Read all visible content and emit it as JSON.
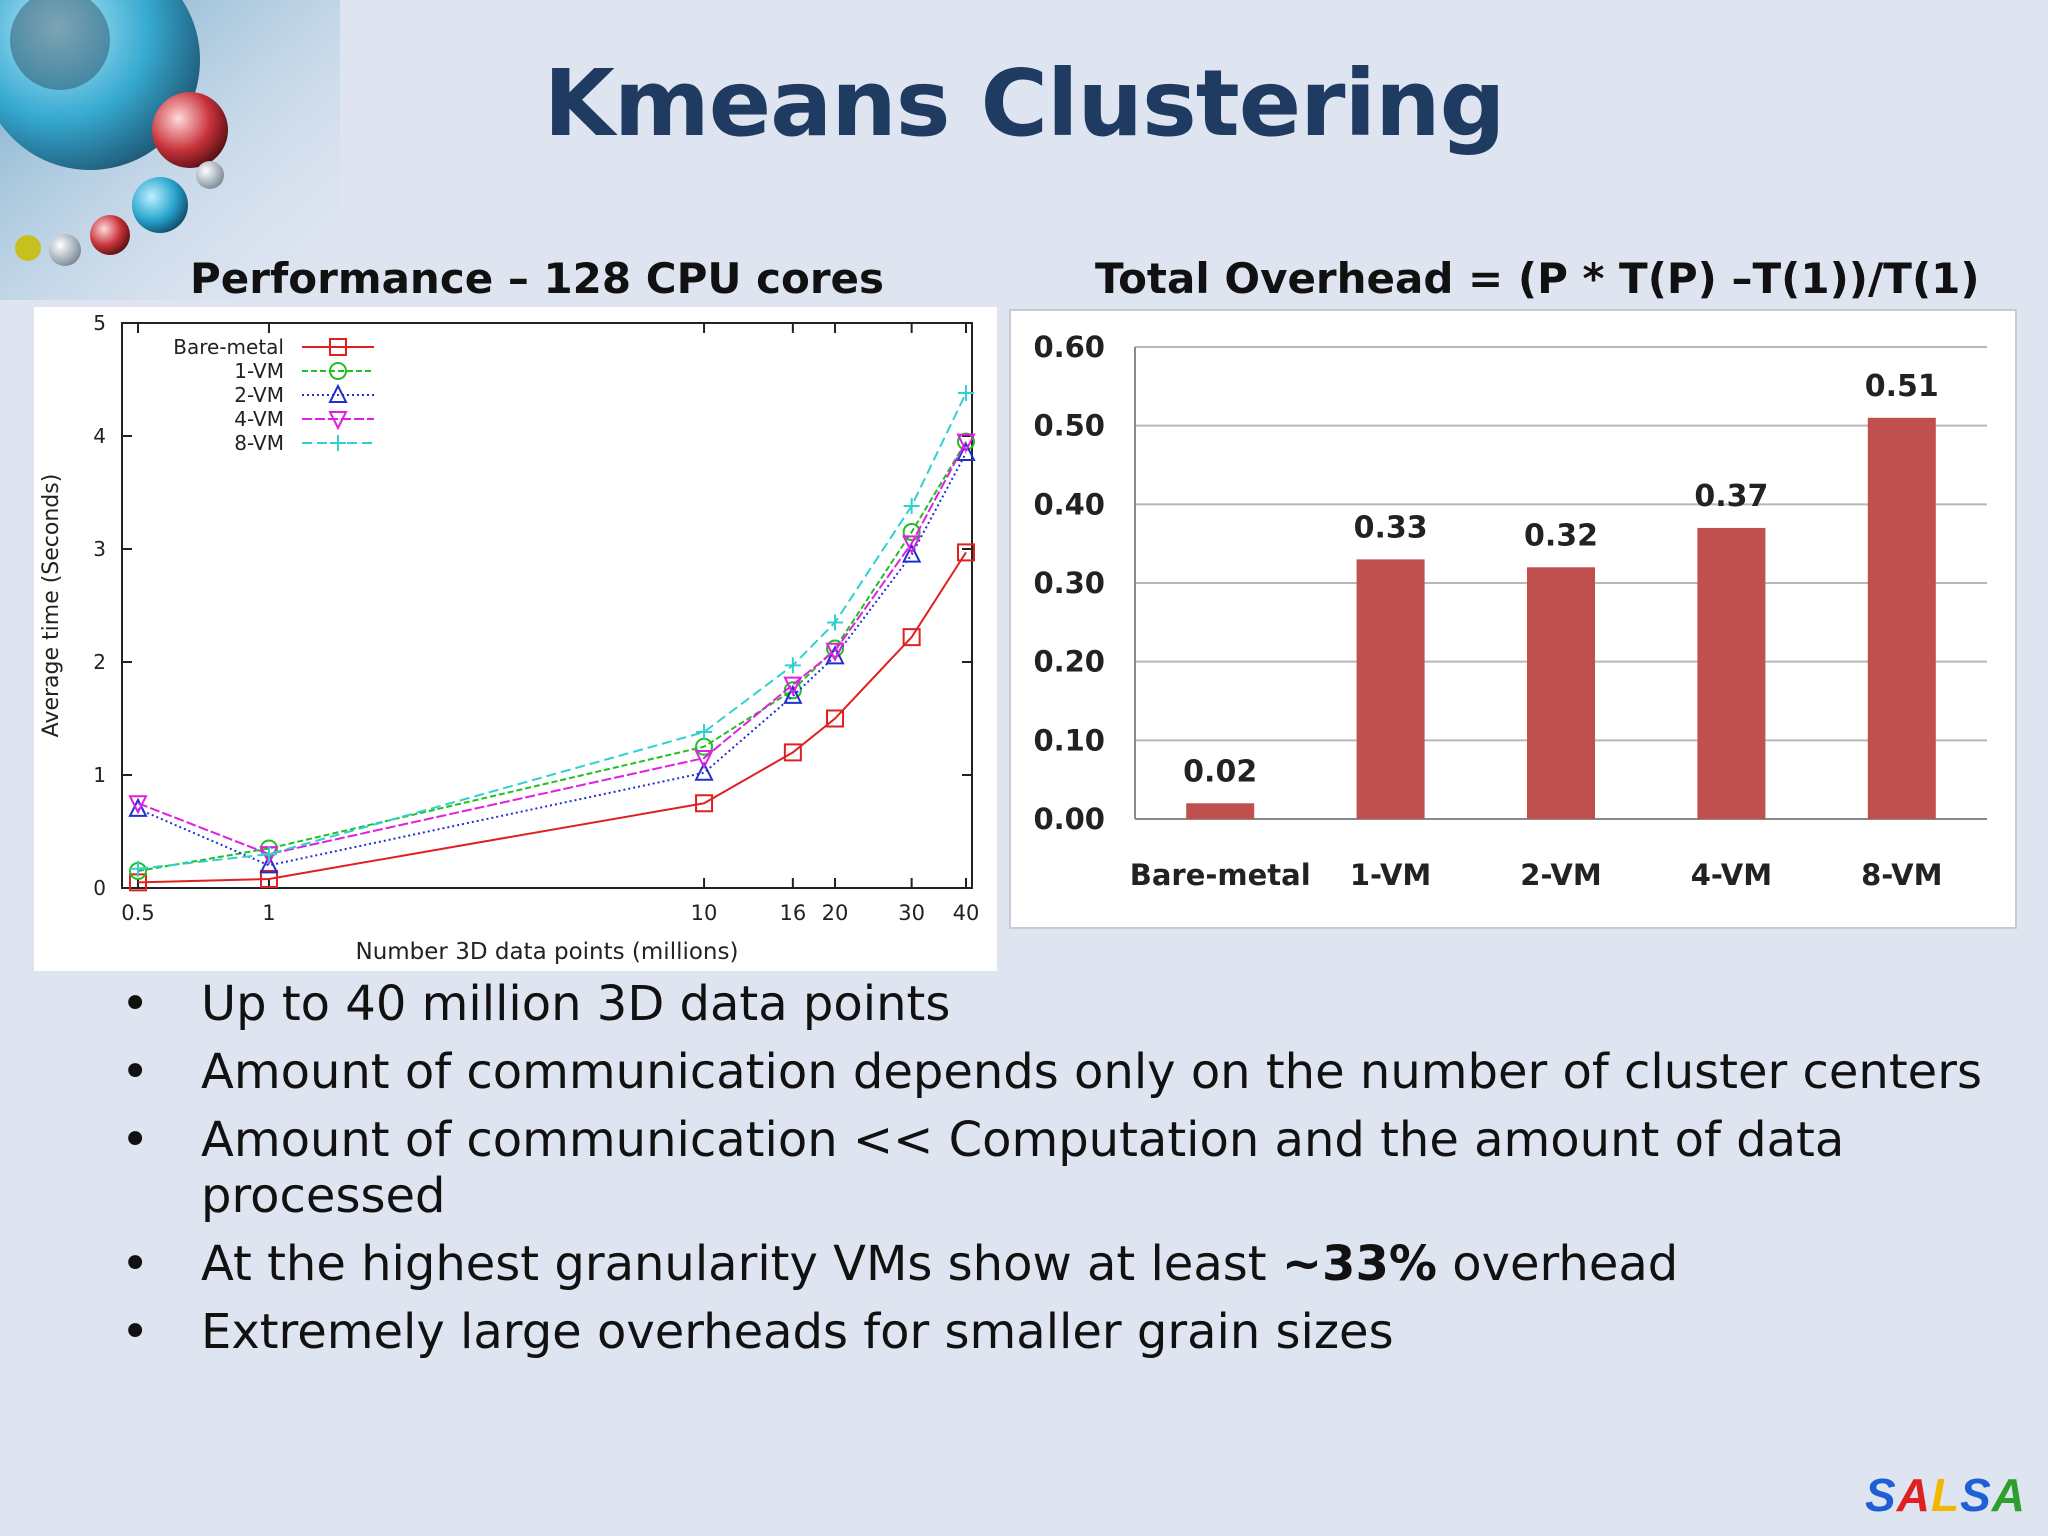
{
  "slide": {
    "title": "Kmeans Clustering",
    "left_subtitle": "Performance – 128 CPU cores",
    "right_subtitle": "Total Overhead = (P * T(P) –T(1))/T(1)",
    "logo": {
      "letters": [
        "S",
        "A",
        "L",
        "S",
        "A"
      ],
      "colors": [
        "#1f5fd6",
        "#e02020",
        "#f2b800",
        "#1f5fd6",
        "#2f9e2f"
      ]
    },
    "bullets": [
      {
        "text": "Up to 40 million 3D data points"
      },
      {
        "text": "Amount of communication depends only on the number of cluster centers"
      },
      {
        "text": "Amount of communication  << Computation and the amount of data processed"
      },
      {
        "pre": "At the highest granularity VMs show at least ",
        "bold": "~33%",
        "post": " overhead"
      },
      {
        "text": "Extremely large overheads for smaller grain sizes"
      }
    ]
  },
  "chart_data": [
    {
      "type": "line",
      "xlabel": "Number 3D data points (millions)",
      "ylabel": "Average time (Seconds)",
      "x": [
        0.5,
        1,
        10,
        16,
        20,
        30,
        40
      ],
      "x_tick_labels": [
        "0.5",
        "1",
        "10",
        "16",
        "20",
        "30",
        "40"
      ],
      "x_scale": "log",
      "xlim": [
        0.5,
        40
      ],
      "ylim": [
        0,
        5
      ],
      "y_ticks": [
        0,
        1,
        2,
        3,
        4,
        5
      ],
      "legend_position": "top-left",
      "grid": false,
      "series": [
        {
          "name": "Bare-metal",
          "color": "#e02020",
          "marker": "square",
          "dash": "",
          "values": [
            0.05,
            0.08,
            0.75,
            1.2,
            1.5,
            2.22,
            2.97
          ]
        },
        {
          "name": "1-VM",
          "color": "#20c020",
          "marker": "circle",
          "dash": "6,3",
          "values": [
            0.15,
            0.35,
            1.25,
            1.75,
            2.12,
            3.15,
            3.95
          ]
        },
        {
          "name": "2-VM",
          "color": "#2030d0",
          "marker": "triangle",
          "dash": "2,3",
          "values": [
            0.7,
            0.2,
            1.02,
            1.7,
            2.05,
            2.95,
            3.85
          ]
        },
        {
          "name": "4-VM",
          "color": "#e020e0",
          "marker": "triangle-down",
          "dash": "10,3",
          "values": [
            0.75,
            0.3,
            1.15,
            1.8,
            2.1,
            3.05,
            3.95
          ]
        },
        {
          "name": "8-VM",
          "color": "#30d0d0",
          "marker": "plus",
          "dash": "10,5",
          "values": [
            0.17,
            0.3,
            1.38,
            1.97,
            2.35,
            3.38,
            4.38
          ]
        }
      ]
    },
    {
      "type": "bar",
      "categories": [
        "Bare-metal",
        "1-VM",
        "2-VM",
        "4-VM",
        "8-VM"
      ],
      "values": [
        0.02,
        0.33,
        0.32,
        0.37,
        0.51
      ],
      "value_labels": [
        "0.02",
        "0.33",
        "0.32",
        "0.37",
        "0.51"
      ],
      "ylim": [
        0,
        0.6
      ],
      "y_tick_labels": [
        "0.00",
        "0.10",
        "0.20",
        "0.30",
        "0.40",
        "0.50",
        "0.60"
      ],
      "grid": true,
      "bar_color": "#c0504d"
    }
  ]
}
